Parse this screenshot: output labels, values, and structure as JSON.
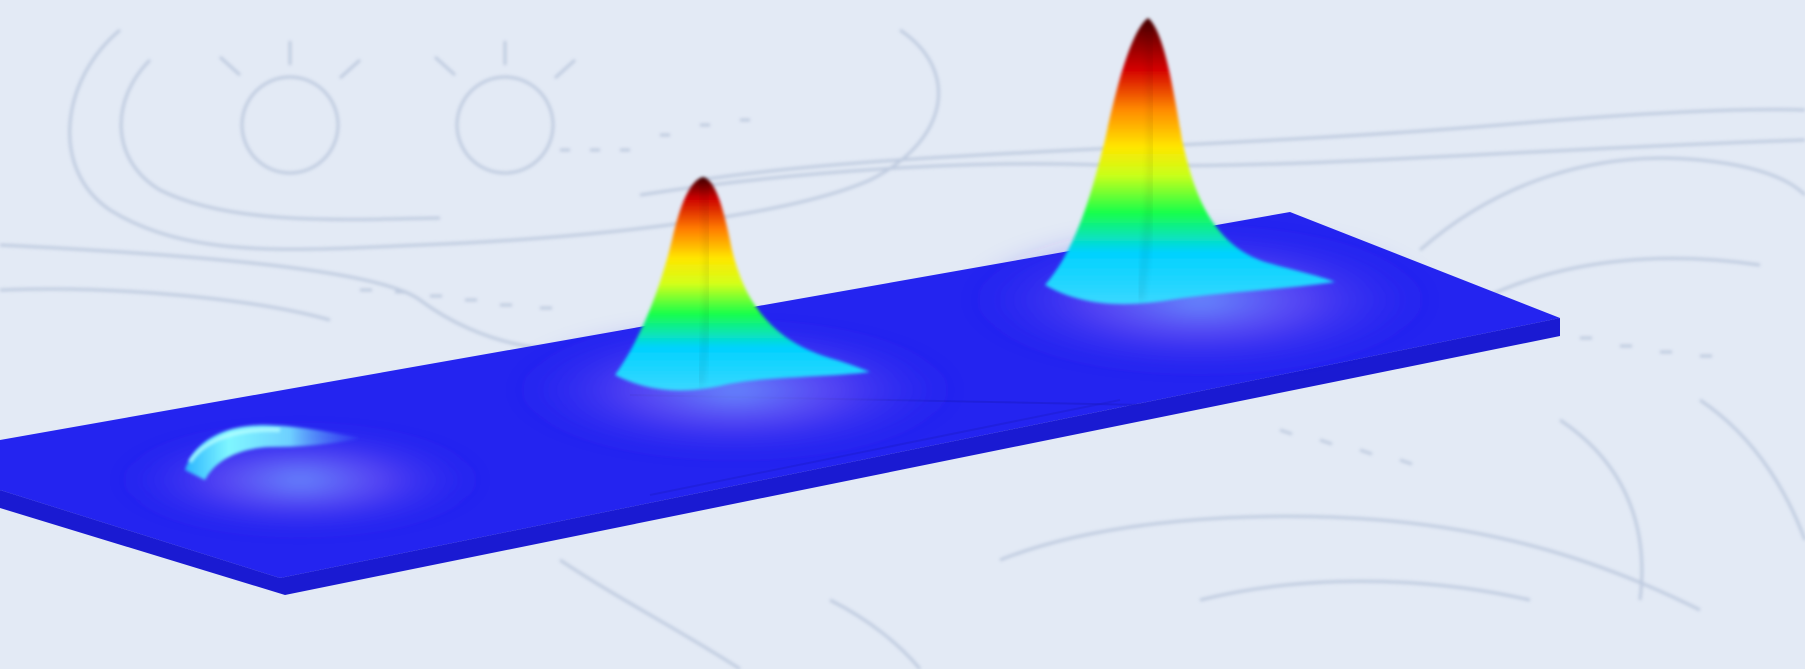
{
  "scene": {
    "background_color": "#e3eaf5",
    "sketch_line_color": "#b9c6dc",
    "plate_color": "#2323f2",
    "plate_edge_color": "#1b1bd0",
    "heat_colormap": [
      "#2a2af0",
      "#00e5ff",
      "#19ff3a",
      "#ffee00",
      "#ff8a00",
      "#d00000",
      "#5a0000"
    ],
    "elements": [
      {
        "name": "background-sketch",
        "description_icon": "mechanical-sketch"
      },
      {
        "name": "blue-plate",
        "description_icon": "surface-plot-plate"
      },
      {
        "name": "ridge-left",
        "description_icon": "low-ridge"
      },
      {
        "name": "peak-middle",
        "description_icon": "medium-peak"
      },
      {
        "name": "peak-right",
        "description_icon": "tall-peak"
      }
    ]
  }
}
